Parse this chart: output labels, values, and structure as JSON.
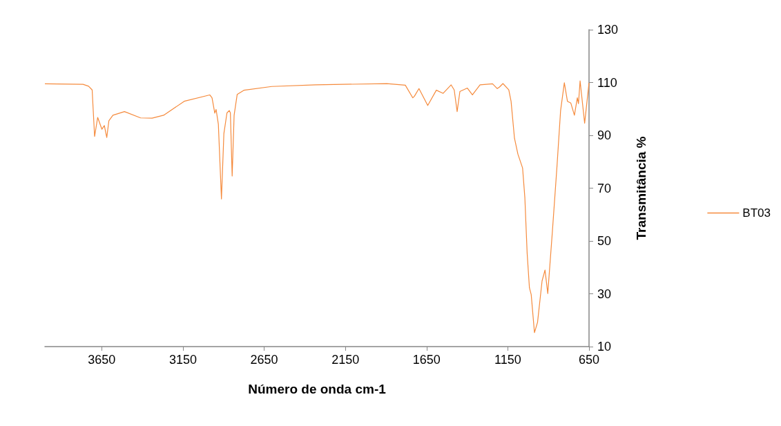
{
  "chart_data": {
    "type": "line",
    "xlabel": "Número de onda cm-1",
    "ylabel": "Transmitância %",
    "xlim": [
      4000,
      650
    ],
    "xticks": [
      3650,
      3150,
      2650,
      2150,
      1650,
      1150,
      650
    ],
    "ylim": [
      10,
      130
    ],
    "yticks": [
      10,
      30,
      50,
      70,
      90,
      110,
      130
    ],
    "grid": false,
    "legend": "right",
    "marker": "none",
    "line_style": "solid",
    "series": [
      {
        "name": "BT03",
        "color": "#f58a3c",
        "x": [
          4000,
          3765,
          3731,
          3709,
          3694,
          3675,
          3649,
          3634,
          3619,
          3606,
          3581,
          3510,
          3411,
          3340,
          3269,
          3142,
          2985,
          2971,
          2954,
          2946,
          2932,
          2913,
          2898,
          2879,
          2865,
          2858,
          2847,
          2835,
          2816,
          2773,
          2603,
          2334,
          1895,
          1781,
          1735,
          1725,
          1697,
          1643,
          1590,
          1548,
          1499,
          1480,
          1462,
          1445,
          1399,
          1368,
          1321,
          1244,
          1215,
          1201,
          1180,
          1144,
          1130,
          1109,
          1088,
          1059,
          1045,
          1031,
          1017,
          1006,
          986,
          967,
          939,
          921,
          904,
          875,
          847,
          825,
          802,
          783,
          762,
          740,
          722,
          715,
          705,
          677,
          650
        ],
        "values": [
          109.5,
          109.3,
          108.6,
          107.2,
          89.6,
          96.8,
          92.3,
          93.7,
          89.2,
          95.5,
          97.6,
          99.0,
          96.6,
          96.5,
          97.6,
          102.9,
          105.3,
          104.2,
          98.4,
          99.8,
          94.2,
          65.9,
          90.7,
          98.5,
          99.4,
          98.5,
          74.6,
          97.6,
          105.5,
          107.1,
          108.5,
          109.1,
          109.6,
          109.0,
          104.2,
          104.8,
          107.7,
          101.3,
          107.1,
          105.9,
          109.1,
          107.2,
          99.0,
          106.6,
          107.9,
          105.3,
          109.1,
          109.5,
          107.7,
          108.3,
          109.6,
          107.2,
          102.9,
          88.9,
          82.9,
          77.6,
          66.3,
          45.4,
          32.3,
          29.7,
          15.3,
          19.2,
          34.9,
          39.0,
          30.1,
          54.1,
          78.5,
          99.4,
          109.9,
          102.9,
          102.2,
          97.6,
          104.2,
          102.0,
          110.6,
          94.6,
          109.9
        ]
      }
    ]
  }
}
